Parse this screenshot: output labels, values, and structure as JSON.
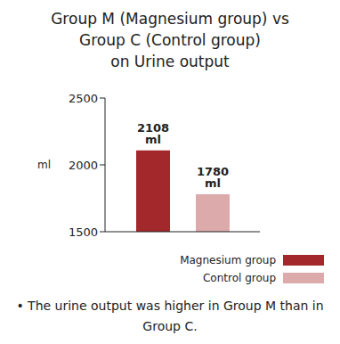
{
  "chart_data": {
    "type": "bar",
    "title": "Group M (Magnesium group) vs\nGroup C (Control group)\non Urine output",
    "y_label": "ml",
    "categories": [
      null
    ],
    "series": [
      {
        "name": "Magnesium group",
        "color": "#a3282c",
        "values": [
          2108
        ],
        "value_labels": [
          "2108 ml"
        ]
      },
      {
        "name": "Control group",
        "color": "#dcaaaa",
        "values": [
          1780
        ],
        "value_labels": [
          "1780 ml"
        ]
      }
    ],
    "ylim": [
      1500,
      2500
    ],
    "yticks": [
      1500,
      2000,
      2500
    ],
    "data_labels": true,
    "tick_labels": "y",
    "grid": false,
    "legend": "lower right",
    "annotations": [
      "• The urine output was higher in Group M than in Group C."
    ]
  }
}
